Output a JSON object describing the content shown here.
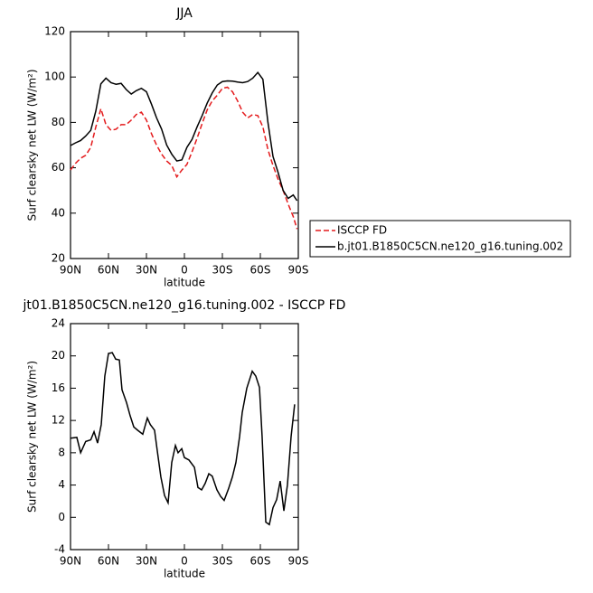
{
  "chart_data": [
    {
      "type": "line",
      "title": "JJA",
      "xlabel": "latitude",
      "ylabel": "Surf clearsky net LW (W/m²)",
      "x": [
        90,
        86,
        82,
        78,
        74,
        70,
        66,
        62,
        58,
        54,
        50,
        46,
        42,
        38,
        34,
        30,
        26,
        22,
        18,
        14,
        10,
        6,
        2,
        -2,
        -6,
        -10,
        -14,
        -18,
        -22,
        -26,
        -30,
        -34,
        -38,
        -42,
        -46,
        -50,
        -54,
        -58,
        -62,
        -66,
        -70,
        -74,
        -78,
        -82,
        -86,
        -89
      ],
      "series": [
        {
          "name": "ISCCP FD",
          "color": "#e41a1c",
          "linestyle": "dashed",
          "values": [
            59,
            62,
            64.2,
            65.5,
            69,
            78,
            86,
            79,
            76.5,
            77,
            79,
            79,
            81,
            83.5,
            84.5,
            81,
            75,
            70,
            66,
            63,
            61,
            56,
            59,
            61.5,
            67,
            73,
            79.5,
            85.5,
            89.5,
            92,
            95,
            95.5,
            93.5,
            89.5,
            84.5,
            82,
            83.5,
            83,
            78,
            68,
            61,
            55,
            50,
            44,
            38.5,
            33
          ]
        },
        {
          "name": "b.jt01.B1850C5CN.ne120_g16.tuning.002",
          "color": "#000000",
          "linestyle": "solid",
          "values": [
            69.8,
            71,
            72,
            74,
            76.5,
            85,
            97,
            99.5,
            97.5,
            96.8,
            97.2,
            94.5,
            92.5,
            94,
            95,
            93.5,
            88,
            82,
            77,
            70,
            66,
            63,
            63.5,
            69,
            72.5,
            78,
            83,
            88.5,
            93,
            96.5,
            98,
            98.3,
            98.2,
            97.8,
            97.5,
            98,
            99.5,
            102,
            99,
            80,
            65,
            58,
            50,
            46.5,
            48,
            45.5
          ]
        }
      ],
      "xlim": [
        90,
        -90
      ],
      "xticks": [
        {
          "value": 90,
          "label": "90N"
        },
        {
          "value": 60,
          "label": "60N"
        },
        {
          "value": 30,
          "label": "30N"
        },
        0,
        {
          "value": -30,
          "label": "30S"
        },
        {
          "value": -60,
          "label": "60S"
        },
        {
          "value": -90,
          "label": "90S"
        }
      ],
      "ylim": [
        20,
        120
      ],
      "yticks": [
        20,
        40,
        60,
        80,
        100,
        120
      ],
      "legend": "outside right"
    },
    {
      "type": "line",
      "title": "jt01.B1850C5CN.ne120_g16.tuning.002 - ISCCP FD",
      "xlabel": "latitude",
      "ylabel": "Surf clearsky net LW (W/m²)",
      "x": [
        90,
        85,
        82,
        78,
        74,
        71.4,
        68.6,
        65.7,
        62.9,
        60,
        57,
        54.3,
        51.4,
        49.3,
        45.7,
        42.9,
        40,
        37,
        32.9,
        29.3,
        27,
        23.6,
        21.4,
        18.6,
        15.7,
        12.9,
        10,
        7.1,
        5,
        2.1,
        0,
        -3.6,
        -7.9,
        -10.7,
        -13.6,
        -16.4,
        -19.3,
        -22,
        -25.7,
        -28.6,
        -31.4,
        -35,
        -37.9,
        -40.7,
        -43.6,
        -45.7,
        -49.3,
        -53.6,
        -56.4,
        -59.3,
        -61.4,
        -64.3,
        -67.1,
        -70,
        -72.9,
        -75.7,
        -78.6,
        -81.4,
        -84.3,
        -87.1
      ],
      "values": [
        9.8,
        9.9,
        8.0,
        9.4,
        9.6,
        10.6,
        9.2,
        11.5,
        17.5,
        20.3,
        20.4,
        19.6,
        19.5,
        15.8,
        14.2,
        12.6,
        11.2,
        10.8,
        10.3,
        12.3,
        11.5,
        10.8,
        8.2,
        5,
        2.7,
        1.8,
        6.8,
        8.9,
        8.0,
        8.5,
        7.4,
        7.1,
        6.2,
        3.7,
        3.4,
        4.2,
        5.4,
        5.1,
        3.4,
        2.6,
        2.1,
        3.6,
        5,
        6.8,
        10,
        13,
        16,
        18.1,
        17.5,
        16.1,
        10,
        -0.6,
        -0.9,
        1.2,
        2.2,
        4.5,
        0.8,
        4,
        10,
        14
      ],
      "color": "#000000",
      "xlim": [
        90,
        -90
      ],
      "xticks": [
        {
          "value": 90,
          "label": "90N"
        },
        {
          "value": 60,
          "label": "60N"
        },
        {
          "value": 30,
          "label": "30N"
        },
        0,
        {
          "value": -30,
          "label": "30S"
        },
        {
          "value": -60,
          "label": "60S"
        },
        {
          "value": -90,
          "label": "90S"
        }
      ],
      "ylim": [
        -4,
        24
      ],
      "yticks": [
        -4,
        0,
        4,
        8,
        12,
        16,
        20,
        24
      ]
    }
  ]
}
